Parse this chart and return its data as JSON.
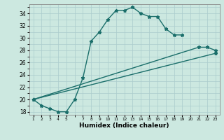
{
  "xlabel": "Humidex (Indice chaleur)",
  "bg_color": "#cce8e0",
  "grid_color": "#aacccc",
  "line_color": "#1a6e6a",
  "line1_x": [
    1,
    2,
    3,
    4,
    5,
    6,
    7,
    8,
    9,
    10,
    11,
    12,
    13,
    14,
    15,
    16,
    17,
    18,
    19
  ],
  "line1_y": [
    20,
    19,
    18.5,
    18,
    18,
    20,
    23.5,
    29.5,
    31,
    33,
    34.5,
    34.5,
    35,
    34,
    33.5,
    33.5,
    31.5,
    30.5,
    30.5
  ],
  "line2_x": [
    1,
    21,
    22,
    23
  ],
  "line2_y": [
    20,
    28.5,
    28.5,
    28
  ],
  "line3_x": [
    1,
    23
  ],
  "line3_y": [
    20,
    27.5
  ],
  "ylim": [
    17.5,
    35.5
  ],
  "xlim": [
    0.5,
    23.5
  ],
  "yticks": [
    18,
    20,
    22,
    24,
    26,
    28,
    30,
    32,
    34
  ],
  "xticks": [
    1,
    2,
    3,
    4,
    5,
    7,
    8,
    9,
    10,
    11,
    12,
    13,
    14,
    15,
    16,
    17,
    18,
    19,
    20,
    21,
    22,
    23
  ],
  "marker": "*",
  "marker_size": 3.5,
  "line_width": 1.0
}
